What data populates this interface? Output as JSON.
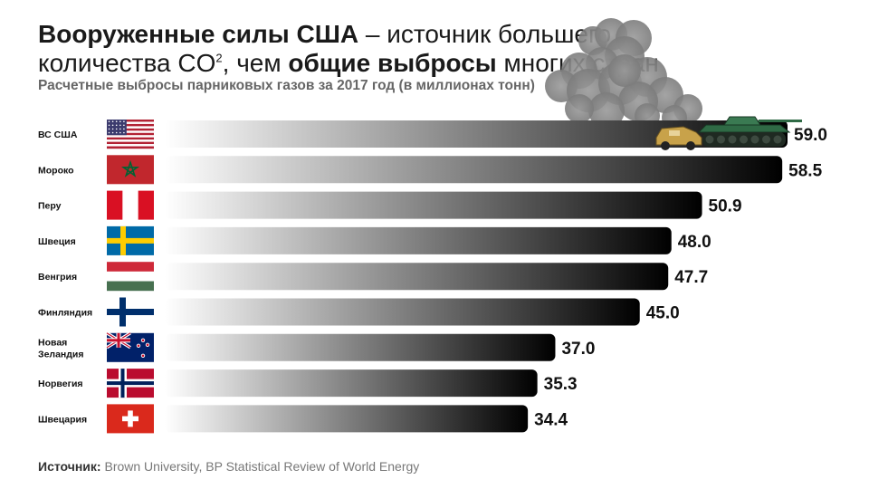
{
  "header": {
    "title_line1_bold": "Вооруженные силы США",
    "title_line1_rest": " – источник большего",
    "title_line2_a": "количества CO",
    "title_line2_sup": "2",
    "title_line2_b": ",  чем ",
    "title_line2_bold": "общие выбросы",
    "title_line2_c": " многих стран",
    "subtitle": "Расчетные выбросы парниковых газов за 2017 год (в миллионах тонн)"
  },
  "footer": {
    "source_label": "Источник:",
    "source_text": " Brown University, BP Statistical Review of World Energy"
  },
  "colors": {
    "bar_dark": "#000000",
    "bar_light": "#ffffff",
    "tank": "#2f6a45",
    "humvee": "#c8a24a",
    "smoke": "#8a8a8a"
  },
  "chart_data": {
    "type": "bar",
    "orientation": "horizontal",
    "categories": [
      "ВС США",
      "Мороко",
      "Перу",
      "Швеция",
      "Венгрия",
      "Финляндия",
      "Новая Зеландия",
      "Норвегия",
      "Швецария"
    ],
    "values": [
      59.0,
      58.5,
      50.9,
      48.0,
      47.7,
      45.0,
      37.0,
      35.3,
      34.4
    ],
    "value_labels": [
      "59.0",
      "58.5",
      "50.9",
      "48.0",
      "47.7",
      "45.0",
      "37.0",
      "35.3",
      "34.4"
    ],
    "flags": [
      "flag-usa-icon",
      "flag-morocco-icon",
      "flag-peru-icon",
      "flag-sweden-icon",
      "flag-hungary-icon",
      "flag-finland-icon",
      "flag-new-zealand-icon",
      "flag-norway-icon",
      "flag-switzerland-icon"
    ],
    "title": "",
    "xlabel": "",
    "ylabel": "",
    "legend": "none",
    "grid": false
  }
}
